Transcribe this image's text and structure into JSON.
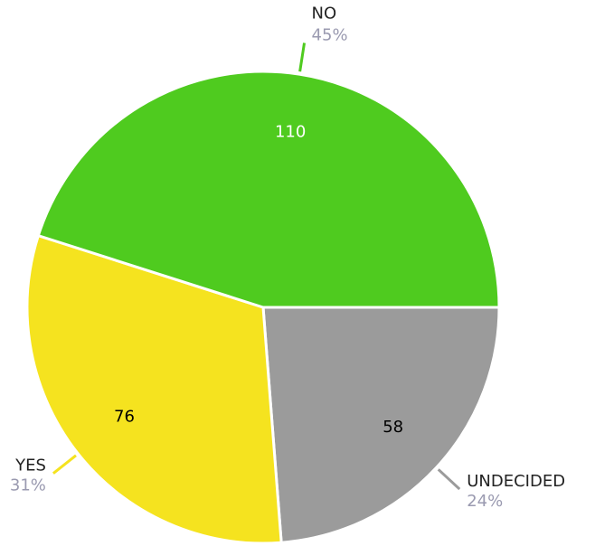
{
  "chart_data": {
    "type": "pie",
    "categories": [
      "UNDECIDED",
      "YES",
      "NO"
    ],
    "values": [
      58,
      76,
      110
    ],
    "percent_labels": [
      "24%",
      "31%",
      "45%"
    ],
    "colors": [
      "#9b9b9b",
      "#f5e31f",
      "#4fcb1f"
    ]
  }
}
